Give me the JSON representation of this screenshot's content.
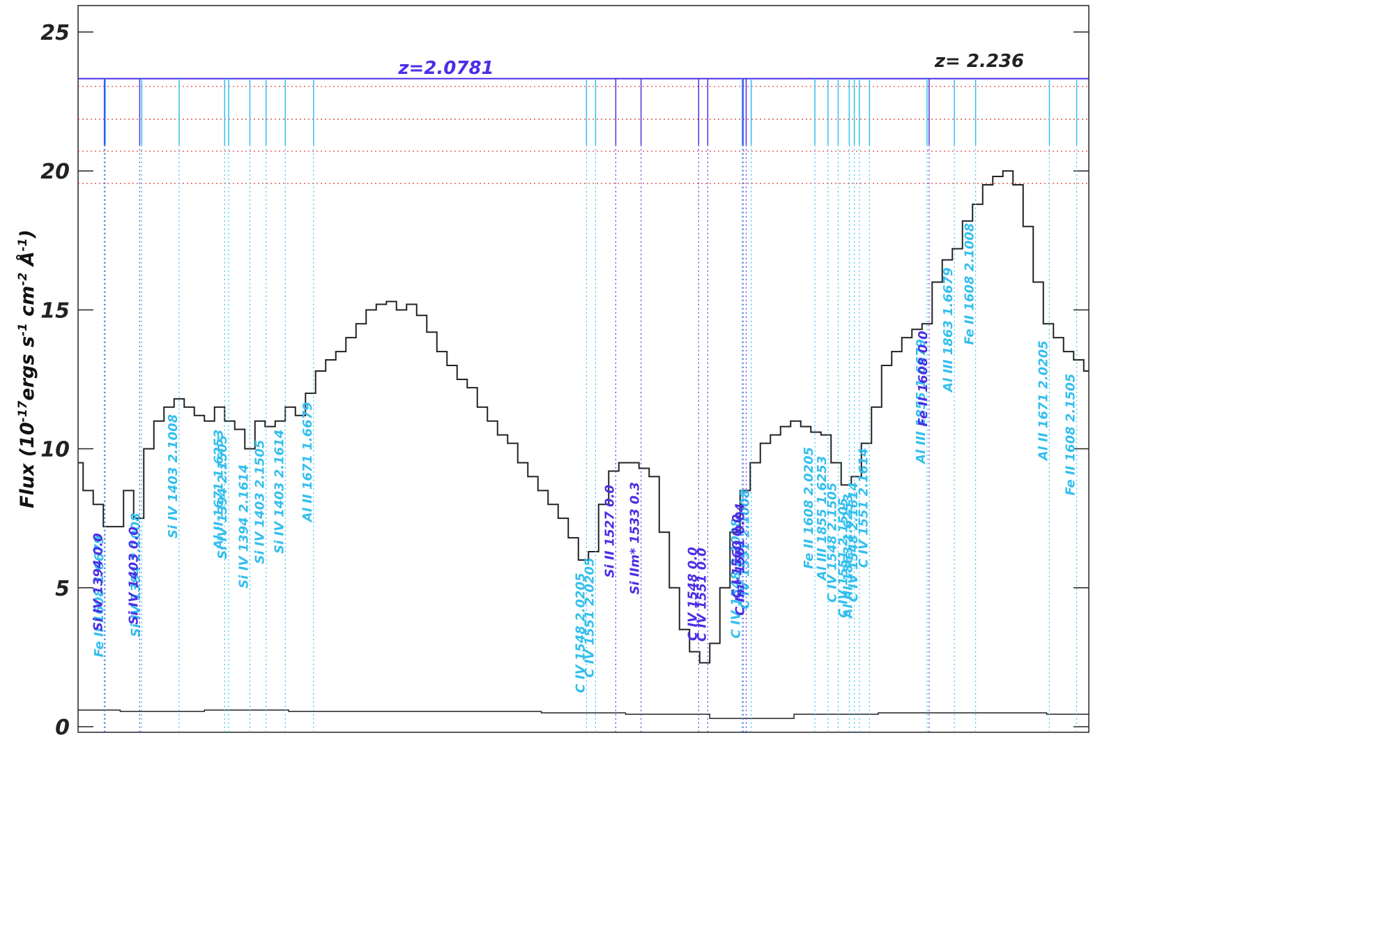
{
  "chart_data": {
    "type": "line",
    "ylabel_parts": [
      "Flux (10",
      "-17",
      "ergs s",
      "-1",
      " cm",
      "-2",
      " Å",
      "-1",
      ")"
    ],
    "ylim": [
      -0.2,
      25.95
    ],
    "yticks": [
      0,
      5,
      10,
      15,
      20,
      25
    ],
    "series": [
      {
        "name": "flux",
        "color": "#222222",
        "values": [
          9.5,
          8.5,
          8.0,
          7.2,
          7.2,
          8.5,
          7.5,
          10,
          11,
          11.5,
          11.8,
          11.5,
          11.2,
          11,
          11.5,
          11,
          10.7,
          10,
          11,
          10.8,
          11,
          11.5,
          11.2,
          12,
          12.8,
          13.2,
          13.5,
          14,
          14.5,
          15.0,
          15.2,
          15.3,
          15.0,
          15.2,
          14.8,
          14.2,
          13.5,
          13,
          12.5,
          12.2,
          11.5,
          11.0,
          10.5,
          10.2,
          9.5,
          9,
          8.5,
          8.0,
          7.5,
          6.8,
          6.0,
          6.3,
          8,
          9.2,
          9.5,
          9.5,
          9.3,
          9.0,
          7,
          5,
          3.5,
          2.7,
          2.3,
          3.0,
          5,
          7,
          8.5,
          9.5,
          10.2,
          10.5,
          10.8,
          11.0,
          10.8,
          10.6,
          10.5,
          9.5,
          8.7,
          9.0,
          10.2,
          11.5,
          13,
          13.5,
          14,
          14.3,
          14.5,
          16.0,
          16.8,
          17.2,
          18.2,
          18.8,
          19.5,
          19.8,
          20.0,
          19.5,
          18.0,
          16.0,
          14.5,
          14,
          13.5,
          13.2,
          12.8
        ]
      },
      {
        "name": "error",
        "color": "#222222",
        "values": [
          0.6,
          0.55,
          0.6,
          0.55,
          0.55,
          0.55,
          0.5,
          0.45,
          0.3,
          0.45,
          0.5,
          0.5,
          0.45
        ]
      }
    ],
    "z_lines": [
      {
        "value": 23.32,
        "color": "#4b2ee6",
        "style": "solid"
      },
      {
        "value": 23.04,
        "color": "#e03030",
        "style": "dotted"
      },
      {
        "value": 21.86,
        "color": "#e03030",
        "style": "dotted"
      },
      {
        "value": 20.71,
        "color": "#e03030",
        "style": "dotted"
      },
      {
        "value": 19.55,
        "color": "#e03030",
        "style": "dotted"
      }
    ],
    "annotations": [
      {
        "text": "z=2.0781",
        "color": "#4b2ee6"
      },
      {
        "text": "z= 2.236",
        "color": "#222222"
      }
    ],
    "line_ids": [
      {
        "label": "Fe II 1608 1.6679",
        "x": 2.7,
        "color": "#33bfee"
      },
      {
        "label": "Si IV 1394 2.1008",
        "x": 6.3,
        "color": "#33bfee"
      },
      {
        "label": "Si IV 1403 2.1008",
        "x": 10.0,
        "color": "#33bfee"
      },
      {
        "label": "Al II 1671 1.6253",
        "x": 14.5,
        "color": "#33bfee"
      },
      {
        "label": "Si IV 1394 2.1505",
        "x": 14.9,
        "color": "#33bfee"
      },
      {
        "label": "Si IV 1394 2.1614",
        "x": 17.0,
        "color": "#33bfee"
      },
      {
        "label": "Si IV 1403 2.1505",
        "x": 18.6,
        "color": "#33bfee"
      },
      {
        "label": "Si IV 1403 2.1614",
        "x": 20.5,
        "color": "#33bfee"
      },
      {
        "label": "Al II 1671 1.6679",
        "x": 23.3,
        "color": "#33bfee"
      },
      {
        "label": "C IV 1548 2.0205",
        "x": 50.3,
        "color": "#33bfee"
      },
      {
        "label": "C IV 1551 2.0205",
        "x": 51.2,
        "color": "#33bfee"
      },
      {
        "label": "C IV 1548 2.1008",
        "x": 65.7,
        "color": "#33bfee"
      },
      {
        "label": "C IV 1551 2.1008",
        "x": 66.6,
        "color": "#33bfee"
      },
      {
        "label": "Fe II 1608 2.0205",
        "x": 72.9,
        "color": "#33bfee"
      },
      {
        "label": "Al III 1855 1.6253",
        "x": 74.2,
        "color": "#33bfee"
      },
      {
        "label": "C IV 1548 2.1505",
        "x": 75.2,
        "color": "#33bfee"
      },
      {
        "label": "C IV 1551 2.1505",
        "x": 76.3,
        "color": "#33bfee"
      },
      {
        "label": "Al III 1863 1.6253",
        "x": 76.8,
        "color": "#33bfee"
      },
      {
        "label": "C IV 1548 2.1614",
        "x": 77.3,
        "color": "#33bfee"
      },
      {
        "label": "C IV 1551 2.1614",
        "x": 78.3,
        "color": "#33bfee"
      },
      {
        "label": "Al III 1855 1.6679",
        "x": 84.0,
        "color": "#33bfee"
      },
      {
        "label": "Al III 1863 1.6679",
        "x": 86.7,
        "color": "#33bfee"
      },
      {
        "label": "Fe II 1608 2.1008",
        "x": 88.8,
        "color": "#33bfee"
      },
      {
        "label": "Al II 1671 2.0205",
        "x": 96.1,
        "color": "#33bfee"
      },
      {
        "label": "Fe II 1608 2.1505",
        "x": 98.8,
        "color": "#33bfee"
      },
      {
        "label": "Si IV 1394 0.0",
        "x": 2.6,
        "color": "#4b2ee6"
      },
      {
        "label": "Si IV 1403 0.0",
        "x": 6.1,
        "color": "#4b2ee6"
      },
      {
        "label": "Si II 1527 0.0",
        "x": 53.2,
        "color": "#4b2ee6"
      },
      {
        "label": "Si IIm* 1533 0.3",
        "x": 55.7,
        "color": "#4b2ee6"
      },
      {
        "label": "C IV 1548 0.0",
        "x": 61.4,
        "color": "#4b2ee6"
      },
      {
        "label": "C IV 1551 0.0",
        "x": 62.3,
        "color": "#4b2ee6"
      },
      {
        "label": "C I 1560 0.0",
        "x": 65.8,
        "color": "#4b2ee6"
      },
      {
        "label": "C Im* 1561 0.04",
        "x": 66.1,
        "color": "#4b2ee6"
      },
      {
        "label": "Fe II 1608 0.0",
        "x": 84.2,
        "color": "#4b2ee6"
      }
    ]
  }
}
